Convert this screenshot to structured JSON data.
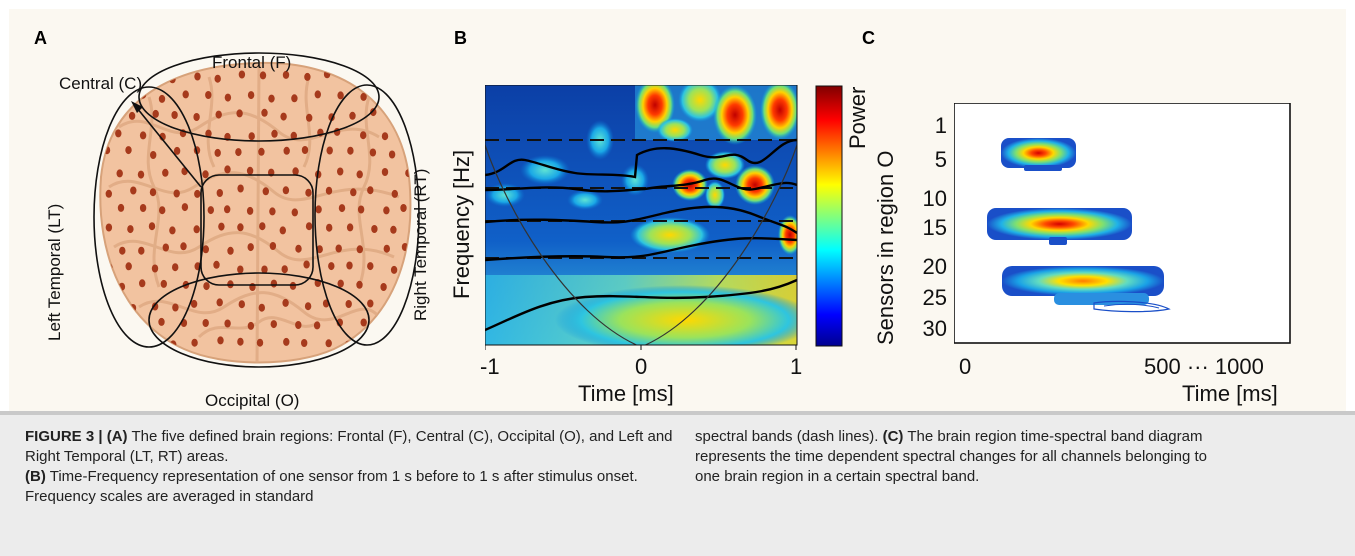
{
  "panels": {
    "a": {
      "letter": "A",
      "regions": {
        "frontal": "Frontal (F)",
        "central": "Central (C)",
        "left_temporal": "Left Temporal (LT)",
        "right_temporal": "Right Temporal (RT)",
        "occipital": "Occipital (O)"
      },
      "colors": {
        "brain": "#f2c3a0",
        "sensor": "#a63a1c",
        "outline": "#111111"
      }
    },
    "b": {
      "letter": "B",
      "ylabel": "Frequency [Hz]",
      "xlabel": "Time [ms]",
      "x_ticks": [
        "-1",
        "0",
        "1"
      ],
      "colorbar_label": "Power",
      "x_range": [
        -1,
        1
      ]
    },
    "c": {
      "letter": "C",
      "ylabel": "Sensors in region O",
      "xlabel": "Time [ms]",
      "y_ticks": [
        "1",
        "5",
        "10",
        "15",
        "20",
        "25",
        "30"
      ],
      "x_tick_start": "0",
      "x_tick_end": "500 ··· 1000"
    }
  },
  "caption": {
    "label": "FIGURE 3 |",
    "a_tag": "(A)",
    "a_text": " The five defined brain regions: Frontal (F), Central (C), Occipital (O), and Left and Right Temporal (LT, RT) areas.",
    "b_tag": "(B)",
    "b_text": " Time-Frequency representation of one sensor from 1 s before to 1 s after stimulus onset. Frequency scales are averaged in standard",
    "b_text_cont": "spectral bands (dash lines). ",
    "c_tag": "(C)",
    "c_text": " The brain region time-spectral band diagram represents the time dependent spectral changes for all channels belonging to one brain region in a certain spectral band."
  },
  "chart_data": [
    {
      "type": "heatmap",
      "title": "",
      "xlabel": "Time [ms]",
      "ylabel": "Frequency [Hz]",
      "x_ticks": [
        -1,
        0,
        1
      ],
      "xlim": [
        -1,
        1
      ],
      "colorbar": "Power",
      "note": "wavelet time-frequency power; dashed lines mark standard spectral bands"
    },
    {
      "type": "heatmap",
      "title": "",
      "xlabel": "Time [ms]",
      "ylabel": "Sensors in region O",
      "y_ticks": [
        1,
        5,
        10,
        15,
        20,
        25,
        30
      ],
      "x_ticks": [
        "0",
        "500 ··· 1000"
      ]
    }
  ]
}
